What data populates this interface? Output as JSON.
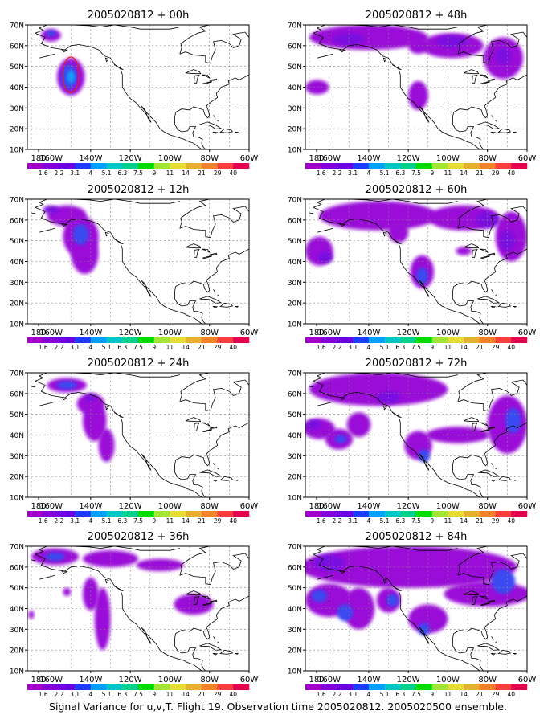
{
  "panels": [
    {
      "title": "2005020812 + 00h"
    },
    {
      "title": "2005020812 + 48h"
    },
    {
      "title": "2005020812 + 12h"
    },
    {
      "title": "2005020812 + 60h"
    },
    {
      "title": "2005020812 + 24h"
    },
    {
      "title": "2005020812 + 72h"
    },
    {
      "title": "2005020812 + 36h"
    },
    {
      "title": "2005020812 + 84h"
    }
  ],
  "lat_labels": [
    "70N",
    "60N",
    "50N",
    "40N",
    "30N",
    "20N",
    "10N"
  ],
  "lon_labels": [
    "180",
    "160W",
    "140W",
    "120W",
    "100W",
    "80W",
    "60W"
  ],
  "colorbar": {
    "labels": [
      "1.6",
      "2.2",
      "3.1",
      "4",
      "5.1",
      "6.3",
      "7.5",
      "9",
      "11",
      "14",
      "21",
      "29",
      "40"
    ],
    "colors": [
      "#a000c8",
      "#8200dc",
      "#6e00e6",
      "#1e3cff",
      "#00a0ff",
      "#00c8c8",
      "#00d28c",
      "#00dc00",
      "#a0e632",
      "#e6dc32",
      "#e6af2d",
      "#f08228",
      "#fa3c3c",
      "#e60050"
    ]
  },
  "footer": "Signal Variance for u,v,T. Flight 19. Observation time 2005020812. 2005020500 ensemble."
}
